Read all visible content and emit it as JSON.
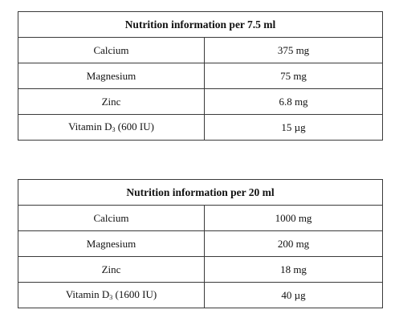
{
  "tables": [
    {
      "title": "Nutrition information per 7.5 ml",
      "rows": [
        {
          "name": "Calcium",
          "value": "375 mg"
        },
        {
          "name": "Magnesium",
          "value": "75 mg"
        },
        {
          "name": "Zinc",
          "value": "6.8 mg"
        },
        {
          "name_pre": "Vitamin D",
          "name_sub": "3",
          "name_post": " (600 IU)",
          "value": "15 µg"
        }
      ]
    },
    {
      "title": "Nutrition information per 20 ml",
      "rows": [
        {
          "name": "Calcium",
          "value": "1000 mg"
        },
        {
          "name": "Magnesium",
          "value": "200 mg"
        },
        {
          "name": "Zinc",
          "value": "18 mg"
        },
        {
          "name_pre": "Vitamin D",
          "name_sub": "3",
          "name_post": " (1600 IU)",
          "value": "40 µg"
        }
      ]
    }
  ]
}
